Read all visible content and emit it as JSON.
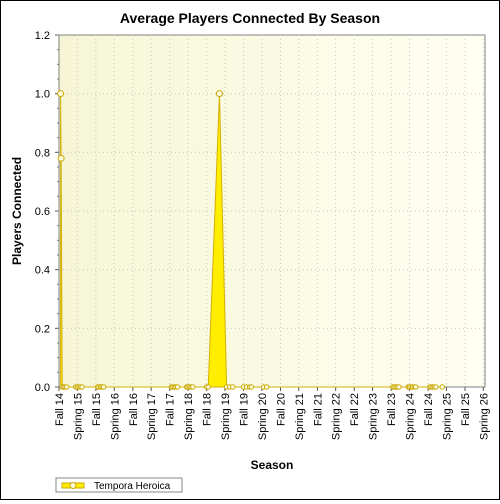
{
  "chart_data": {
    "type": "area",
    "title": "Average Players Connected By Season",
    "xlabel": "Season",
    "ylabel": "Players Connected",
    "ylim": [
      0,
      1.2
    ],
    "yticks": [
      "0.0",
      "0.2",
      "0.4",
      "0.6",
      "0.8",
      "1.0",
      "1.2"
    ],
    "grid": true,
    "legend_position": "bottom-left",
    "categories": [
      "Fall 14",
      "Spring 15",
      "Fall 15",
      "Spring 16",
      "Fall 16",
      "Spring 17",
      "Fall 17",
      "Spring 18",
      "Fall 18",
      "Spring 19",
      "Fall 19",
      "Spring 20",
      "Fall 20",
      "Spring 21",
      "Fall 21",
      "Spring 22",
      "Fall 22",
      "Spring 23",
      "Fall 23",
      "Spring 24",
      "Fall 24",
      "Spring 25",
      "Fall 25",
      "Spring 26"
    ],
    "x": [
      "2014-10-01",
      "2014-10-06",
      "2014-10-17",
      "2014-11-01",
      "2014-11-15",
      "2014-12-01",
      "2015-03-01",
      "2015-03-15",
      "2015-04-01",
      "2015-04-15",
      "2015-05-01",
      "2015-10-01",
      "2015-10-15",
      "2015-11-01",
      "2015-11-15",
      "2015-12-01",
      "2017-10-01",
      "2017-10-15",
      "2017-11-01",
      "2017-11-15",
      "2017-12-01",
      "2018-03-01",
      "2018-03-15",
      "2018-04-01",
      "2018-04-15",
      "2018-05-01",
      "2018-09-15",
      "2018-10-01",
      "2019-01-20",
      "2019-04-01",
      "2019-05-01",
      "2019-06-01",
      "2019-09-15",
      "2019-10-15",
      "2019-11-15",
      "2019-12-01",
      "2020-04-01",
      "2020-05-01",
      "2023-10-01",
      "2023-10-15",
      "2023-11-01",
      "2023-11-15",
      "2023-12-01",
      "2024-03-01",
      "2024-03-15",
      "2024-04-01",
      "2024-04-15",
      "2024-05-01",
      "2024-05-15",
      "2024-10-01",
      "2024-10-15",
      "2024-11-01",
      "2024-11-15",
      "2024-12-01",
      "2025-02-01"
    ],
    "series": [
      {
        "name": "Tempora Heroica",
        "color": "#ffee00",
        "values": [
          1.0,
          0.78,
          0.0,
          0.0,
          0.0,
          0.0,
          0.0,
          0.0,
          0.0,
          0.0,
          0.0,
          0.0,
          0.0,
          0.0,
          0.0,
          0.0,
          0.0,
          0.0,
          0.0,
          0.0,
          0.0,
          0.0,
          0.0,
          0.0,
          0.0,
          0.0,
          0.0,
          0.0,
          1.0,
          0.0,
          0.0,
          0.0,
          0.0,
          0.0,
          0.0,
          0.0,
          0.0,
          0.0,
          0.0,
          0.0,
          0.0,
          0.0,
          0.0,
          0.0,
          0.0,
          0.0,
          0.0,
          0.0,
          0.0,
          0.0,
          0.0,
          0.0,
          0.0,
          0.0,
          0.0
        ]
      }
    ]
  }
}
